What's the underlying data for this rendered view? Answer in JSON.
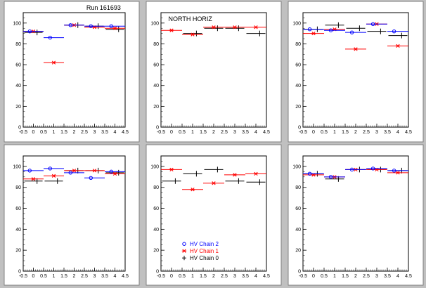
{
  "colors": {
    "page_bg": "#c0c0c0",
    "pad_bg": "#ffffff",
    "chain2": "#0000ff",
    "chain1": "#ff0000",
    "chain0": "#000000"
  },
  "legend": [
    {
      "key": "chain2",
      "label": "HV Chain 2",
      "marker": "circle"
    },
    {
      "key": "chain1",
      "label": "HV Chain 1",
      "marker": "star"
    },
    {
      "key": "chain0",
      "label": "HV Chain 0",
      "marker": "cross"
    }
  ],
  "chart_data": [
    {
      "type": "scatter",
      "title": "",
      "annotation": "Run 161693",
      "xlim": [
        -0.5,
        4.5
      ],
      "ylim": [
        0,
        110
      ],
      "xticks": [
        "-0.5",
        "0",
        "0.5",
        "1",
        "1.5",
        "2",
        "2.5",
        "3",
        "3.5",
        "4",
        "4.5"
      ],
      "yticks": [
        "0",
        "20",
        "40",
        "60",
        "80",
        "100"
      ],
      "series": [
        {
          "key": "chain2",
          "x": [
            0,
            1,
            2,
            3,
            4
          ],
          "y": [
            92,
            86,
            98,
            97,
            97
          ]
        },
        {
          "key": "chain1",
          "x": [
            0,
            1,
            2,
            3,
            4
          ],
          "y": [
            92,
            62,
            98,
            96,
            95
          ]
        },
        {
          "key": "chain0",
          "x": [
            0,
            1,
            2,
            3,
            4
          ],
          "y": [
            91,
            null,
            98,
            97,
            94
          ]
        }
      ]
    },
    {
      "type": "scatter",
      "title": "",
      "annotation": "NORTH HORIZ",
      "xlim": [
        -0.5,
        4.5
      ],
      "ylim": [
        0,
        110
      ],
      "xticks": [
        "-0.5",
        "0",
        "0.5",
        "1",
        "1.5",
        "2",
        "2.5",
        "3",
        "3.5",
        "4",
        "4.5"
      ],
      "yticks": [
        "0",
        "20",
        "40",
        "60",
        "80",
        "100"
      ],
      "series": [
        {
          "key": "chain2",
          "x": [],
          "y": []
        },
        {
          "key": "chain1",
          "x": [
            0,
            1,
            2,
            3,
            4
          ],
          "y": [
            93,
            89,
            96,
            96,
            96
          ]
        },
        {
          "key": "chain0",
          "x": [
            0,
            1,
            2,
            3,
            4
          ],
          "y": [
            null,
            90,
            95,
            95,
            90
          ]
        }
      ]
    },
    {
      "type": "scatter",
      "title": "",
      "annotation": "",
      "xlim": [
        -0.5,
        4.5
      ],
      "ylim": [
        0,
        110
      ],
      "xticks": [
        "-0.5",
        "0",
        "0.5",
        "1",
        "1.5",
        "2",
        "2.5",
        "3",
        "3.5",
        "4",
        "4.5"
      ],
      "yticks": [
        "0",
        "20",
        "40",
        "60",
        "80",
        "100"
      ],
      "series": [
        {
          "key": "chain2",
          "x": [
            0,
            1,
            2,
            3,
            4
          ],
          "y": [
            94,
            93,
            91,
            99,
            92
          ]
        },
        {
          "key": "chain1",
          "x": [
            0,
            1,
            2,
            3,
            4
          ],
          "y": [
            90,
            94,
            75,
            99,
            78
          ]
        },
        {
          "key": "chain0",
          "x": [
            0,
            1,
            2,
            3,
            4
          ],
          "y": [
            94,
            98,
            95,
            92,
            88
          ]
        }
      ]
    },
    {
      "type": "scatter",
      "title": "",
      "annotation": "",
      "xlim": [
        -0.5,
        4.5
      ],
      "ylim": [
        0,
        110
      ],
      "xticks": [
        "-0.5",
        "0",
        "0.5",
        "1",
        "1.5",
        "2",
        "2.5",
        "3",
        "3.5",
        "4",
        "4.5"
      ],
      "yticks": [
        "0",
        "20",
        "40",
        "60",
        "80",
        "100"
      ],
      "series": [
        {
          "key": "chain2",
          "x": [
            0,
            1,
            2,
            3,
            4
          ],
          "y": [
            96,
            98,
            94,
            89,
            95
          ]
        },
        {
          "key": "chain1",
          "x": [
            0,
            1,
            2,
            3,
            4
          ],
          "y": [
            88,
            91,
            96,
            96,
            93
          ]
        },
        {
          "key": "chain0",
          "x": [
            0,
            1,
            2,
            3,
            4
          ],
          "y": [
            86,
            86,
            96,
            96,
            94
          ]
        }
      ]
    },
    {
      "type": "scatter",
      "title": "",
      "annotation": "",
      "xlim": [
        -0.5,
        4.5
      ],
      "ylim": [
        0,
        110
      ],
      "xticks": [
        "-0.5",
        "0",
        "0.5",
        "1",
        "1.5",
        "2",
        "2.5",
        "3",
        "3.5",
        "4",
        "4.5"
      ],
      "yticks": [
        "0",
        "20",
        "40",
        "60",
        "80",
        "100"
      ],
      "series": [
        {
          "key": "chain2",
          "x": [],
          "y": []
        },
        {
          "key": "chain1",
          "x": [
            0,
            1,
            2,
            3,
            4
          ],
          "y": [
            97,
            78,
            84,
            92,
            93
          ]
        },
        {
          "key": "chain0",
          "x": [
            0,
            1,
            2,
            3,
            4
          ],
          "y": [
            86,
            93,
            97,
            86,
            85
          ]
        }
      ],
      "show_legend": true
    },
    {
      "type": "scatter",
      "title": "",
      "annotation": "",
      "xlim": [
        -0.5,
        4.5
      ],
      "ylim": [
        0,
        110
      ],
      "xticks": [
        "-0.5",
        "0",
        "0.5",
        "1",
        "1.5",
        "2",
        "2.5",
        "3",
        "3.5",
        "4",
        "4.5"
      ],
      "yticks": [
        "0",
        "20",
        "40",
        "60",
        "80",
        "100"
      ],
      "series": [
        {
          "key": "chain2",
          "x": [
            0,
            1,
            2,
            3,
            4
          ],
          "y": [
            93,
            90,
            97,
            98,
            96
          ]
        },
        {
          "key": "chain1",
          "x": [
            0,
            1,
            2,
            3,
            4
          ],
          "y": [
            92,
            90,
            97,
            97,
            94
          ]
        },
        {
          "key": "chain0",
          "x": [
            0,
            1,
            2,
            3,
            4
          ],
          "y": [
            93,
            88,
            97,
            97,
            96
          ]
        }
      ]
    }
  ]
}
